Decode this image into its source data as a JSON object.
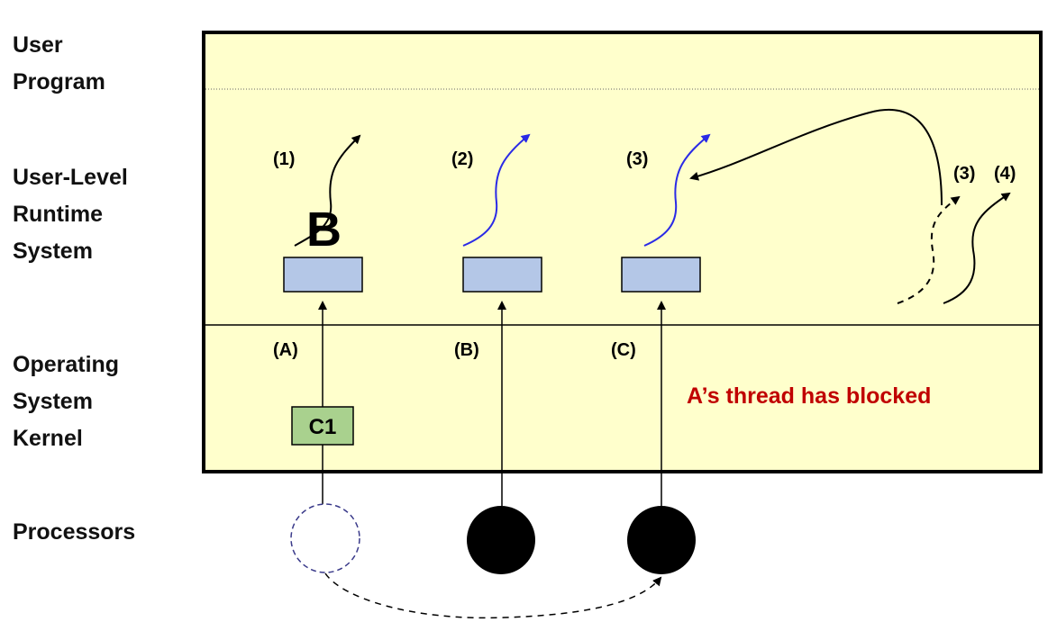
{
  "layers": {
    "user_program": "User\nProgram",
    "runtime_system": "User-Level\nRuntime\nSystem",
    "kernel": "Operating\nSystem\nKernel",
    "processors": "Processors"
  },
  "threads": {
    "one": "(1)",
    "two": "(2)",
    "three": "(3)",
    "three_right": "(3)",
    "four": "(4)"
  },
  "blocked_marker": "B",
  "kernel_threads": {
    "a": "(A)",
    "b": "(B)",
    "c": "(C)"
  },
  "kernel_box_label": "C1",
  "status_message": "A’s thread has blocked",
  "colors": {
    "background": "#ffffcc",
    "activation_box": "#b4c7e7",
    "kernel_box": "#a9d18e",
    "message": "#c00000",
    "runtime_thread": "#2a2ae6"
  }
}
